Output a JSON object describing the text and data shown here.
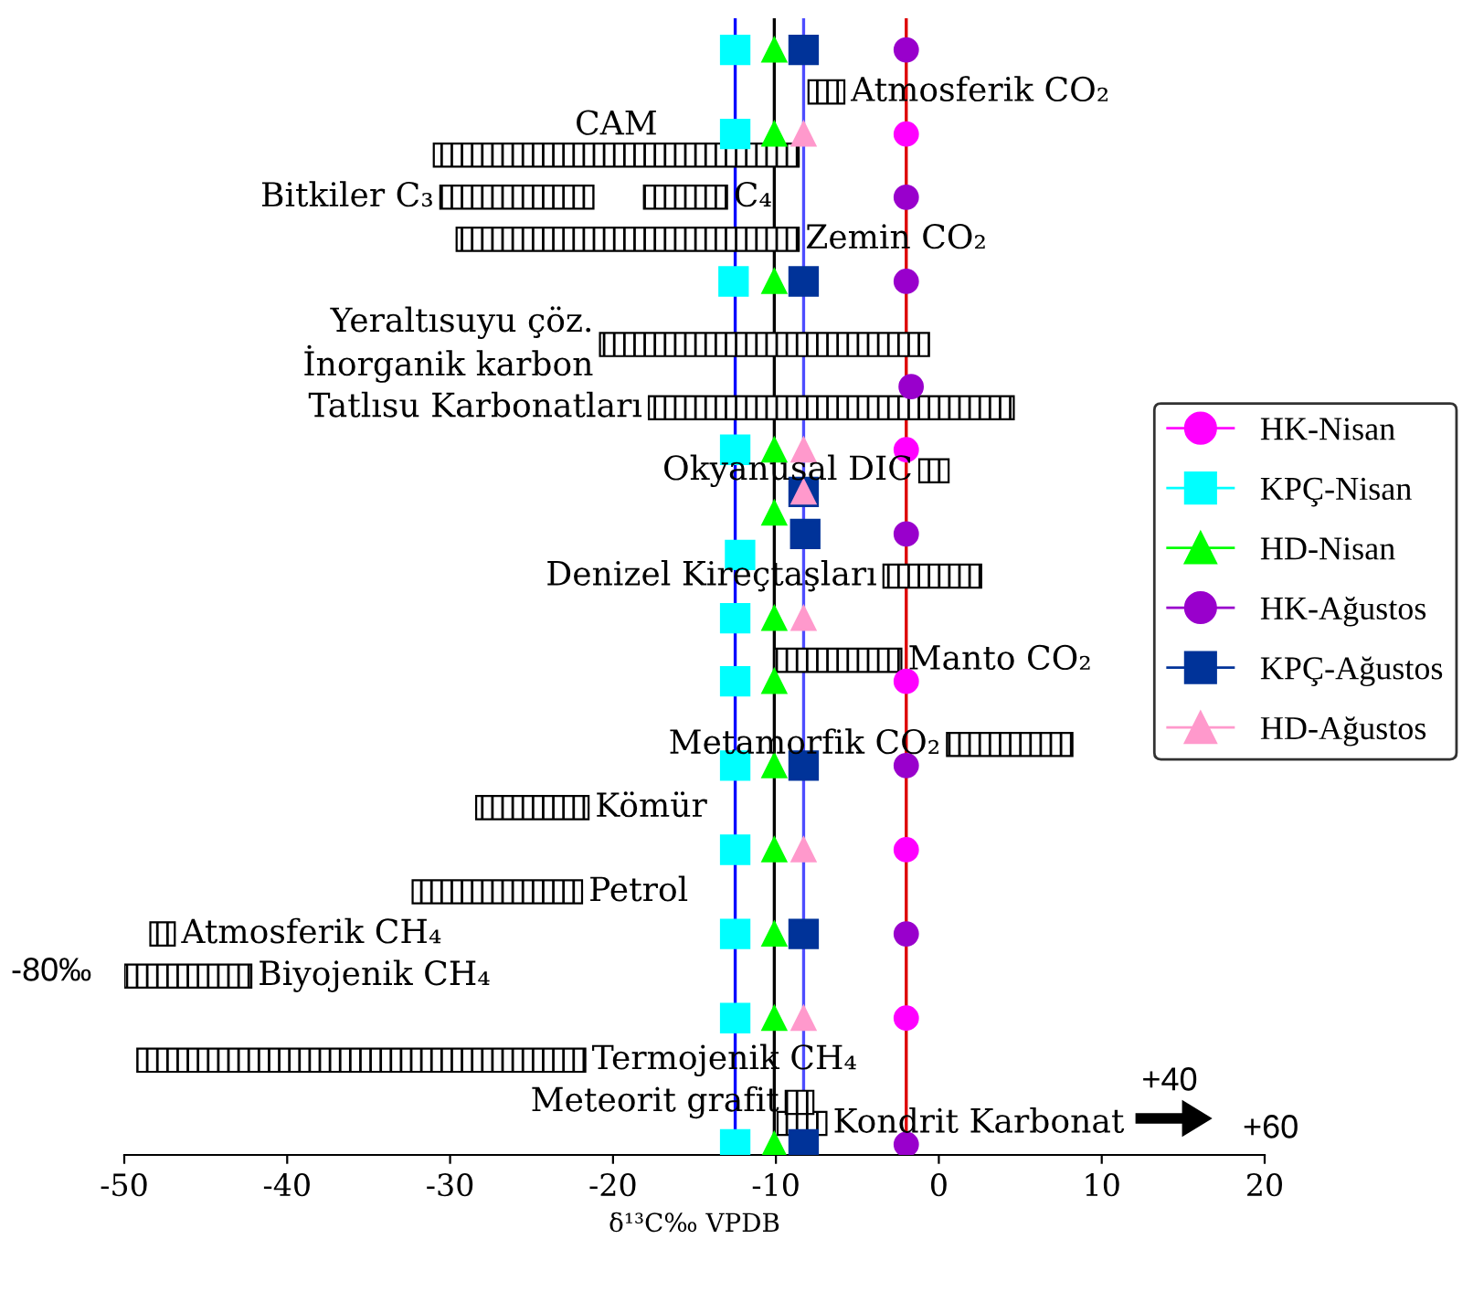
{
  "chart_data": {
    "type": "scatter",
    "orientation": "horizontal",
    "xlabel": "δ¹³C‰ VPDB",
    "categories": [
      null,
      null,
      null,
      null,
      null,
      null,
      null,
      null,
      null,
      null,
      null,
      null,
      null,
      null,
      null,
      null,
      null,
      null,
      null,
      null,
      null,
      null,
      null,
      null,
      null,
      null,
      null,
      null,
      null,
      null,
      null,
      null,
      null,
      null,
      null,
      null,
      null,
      null,
      null,
      null,
      null,
      null,
      null,
      null,
      null,
      null,
      null,
      null,
      null,
      null,
      null,
      null,
      null,
      null
    ],
    "xlim": [
      -50,
      20
    ],
    "xticks": [
      -50,
      -40,
      -30,
      -20,
      -10,
      0,
      10,
      20
    ],
    "tick_labels": "x",
    "legend": "right",
    "series": [
      {
        "name": "HK-Nisan",
        "marker": "circle",
        "color": "#ff00ff",
        "values": [
          null,
          null,
          null,
          null,
          null,
          -2.0,
          null,
          null,
          null,
          null,
          null,
          null,
          null,
          null,
          null,
          null,
          null,
          null,
          null,
          null,
          -2.0,
          null,
          null,
          null,
          null,
          null,
          null,
          null,
          null,
          null,
          null,
          -2.0,
          null,
          null,
          null,
          null,
          null,
          null,
          null,
          -2.0,
          null,
          null,
          null,
          null,
          null,
          null,
          null,
          -2.0,
          null,
          null,
          null,
          null,
          null,
          null
        ]
      },
      {
        "name": "KPÇ-Nisan",
        "marker": "square",
        "color": "#00ffff",
        "values": [
          null,
          -12.5,
          null,
          null,
          null,
          -12.5,
          null,
          null,
          null,
          null,
          null,
          null,
          -12.6,
          null,
          null,
          null,
          null,
          null,
          null,
          null,
          -12.5,
          null,
          null,
          null,
          null,
          -12.2,
          null,
          null,
          -12.5,
          null,
          null,
          -12.5,
          null,
          null,
          null,
          -12.5,
          null,
          null,
          null,
          -12.5,
          null,
          null,
          null,
          -12.5,
          null,
          null,
          null,
          -12.5,
          null,
          null,
          null,
          null,
          null,
          -12.5
        ]
      },
      {
        "name": "HD-Nisan",
        "marker": "triangle",
        "color": "#00ff00",
        "values": [
          null,
          -10.1,
          null,
          null,
          null,
          -10.1,
          null,
          null,
          null,
          null,
          null,
          null,
          -10.1,
          null,
          null,
          null,
          null,
          null,
          null,
          null,
          -10.1,
          null,
          null,
          -10.1,
          null,
          null,
          null,
          null,
          -10.1,
          null,
          null,
          -10.1,
          null,
          null,
          null,
          -10.1,
          null,
          null,
          null,
          -10.1,
          null,
          null,
          null,
          -10.1,
          null,
          null,
          null,
          -10.1,
          null,
          null,
          null,
          null,
          null,
          -10.1
        ]
      },
      {
        "name": "HK-Ağustos",
        "marker": "circle",
        "color": "#9900cc",
        "values": [
          null,
          -2.0,
          null,
          null,
          null,
          null,
          null,
          null,
          -2.0,
          null,
          null,
          null,
          -2.0,
          null,
          null,
          null,
          null,
          -1.7,
          null,
          null,
          null,
          null,
          null,
          null,
          -2.0,
          null,
          null,
          null,
          null,
          null,
          null,
          null,
          null,
          null,
          null,
          -2.0,
          null,
          null,
          null,
          null,
          null,
          null,
          null,
          -2.0,
          null,
          null,
          null,
          null,
          null,
          null,
          null,
          null,
          null,
          -2.0
        ]
      },
      {
        "name": "KPÇ-Ağustos",
        "marker": "square",
        "color": "#003399",
        "values": [
          null,
          -8.3,
          null,
          null,
          null,
          null,
          null,
          null,
          null,
          null,
          null,
          null,
          -8.3,
          null,
          null,
          null,
          null,
          null,
          null,
          null,
          null,
          null,
          -8.3,
          null,
          -8.2,
          null,
          null,
          null,
          null,
          null,
          null,
          null,
          null,
          null,
          null,
          -8.3,
          null,
          null,
          null,
          null,
          null,
          null,
          null,
          -8.3,
          null,
          null,
          null,
          null,
          null,
          null,
          null,
          null,
          null,
          -8.3
        ]
      },
      {
        "name": "HD-Ağustos",
        "marker": "triangle",
        "color": "#ff99cc",
        "values": [
          null,
          null,
          null,
          null,
          null,
          -8.3,
          null,
          null,
          null,
          null,
          null,
          null,
          null,
          null,
          null,
          null,
          null,
          null,
          null,
          null,
          -8.3,
          null,
          -8.3,
          null,
          null,
          null,
          null,
          null,
          -8.3,
          null,
          null,
          null,
          null,
          null,
          null,
          null,
          null,
          null,
          null,
          -8.3,
          null,
          null,
          null,
          null,
          null,
          null,
          null,
          -8.3,
          null,
          null,
          null,
          null,
          null,
          null
        ]
      },
      {
        "type": "bar",
        "color": "#000000",
        "base": [
          null,
          null,
          null,
          null,
          null,
          null,
          -31.0,
          null,
          null,
          null,
          null,
          null,
          null,
          null,
          null,
          null,
          null,
          null,
          null,
          null,
          null,
          null,
          null,
          null,
          null,
          null,
          null,
          null,
          null,
          null,
          null,
          null,
          null,
          null,
          null,
          null,
          null,
          null,
          null,
          null,
          null,
          null,
          null,
          null,
          null,
          null,
          null,
          null,
          null,
          null,
          null,
          null,
          null,
          null
        ],
        "values": [
          null,
          null,
          null,
          null,
          null,
          null,
          22.4,
          null,
          null,
          null,
          null,
          null,
          null,
          null,
          null,
          null,
          null,
          null,
          null,
          null,
          null,
          null,
          null,
          null,
          null,
          null,
          null,
          null,
          null,
          null,
          null,
          null,
          null,
          null,
          null,
          null,
          null,
          null,
          null,
          null,
          null,
          null,
          null,
          null,
          null,
          null,
          null,
          null,
          null,
          null,
          null,
          null,
          null,
          null
        ],
        "value_labels": [
          null,
          null,
          null,
          null,
          null,
          null,
          "CAM",
          null,
          null,
          null,
          null,
          null,
          null,
          null,
          null,
          null,
          null,
          null,
          null,
          null,
          null,
          null,
          null,
          null,
          null,
          null,
          null,
          null,
          null,
          null,
          null,
          null,
          null,
          null,
          null,
          null,
          null,
          null,
          null,
          null,
          null,
          null,
          null,
          null,
          null,
          null,
          null,
          null,
          null,
          null,
          null,
          null,
          null,
          null
        ]
      },
      {
        "type": "bar",
        "color": "#000000",
        "base": [
          null,
          null,
          null,
          -8.0,
          null,
          null,
          null,
          null,
          -18.1,
          null,
          -29.6,
          null,
          null,
          null,
          null,
          null,
          null,
          null,
          null,
          null,
          null,
          null,
          null,
          null,
          null,
          null,
          null,
          null,
          null,
          null,
          -10.1,
          null,
          null,
          null,
          null,
          null,
          null,
          -28.4,
          null,
          null,
          null,
          -32.3,
          null,
          -48.4,
          null,
          -50.0,
          null,
          null,
          null,
          -49.2,
          null,
          null,
          -9.9,
          null
        ],
        "values": [
          null,
          null,
          null,
          2.2,
          null,
          null,
          null,
          null,
          5.1,
          null,
          21.0,
          null,
          null,
          null,
          null,
          null,
          null,
          null,
          null,
          null,
          null,
          null,
          null,
          null,
          null,
          null,
          null,
          null,
          null,
          null,
          7.8,
          null,
          null,
          null,
          null,
          null,
          null,
          6.9,
          null,
          null,
          null,
          10.4,
          null,
          1.5,
          null,
          7.8,
          null,
          null,
          null,
          27.5,
          null,
          null,
          3.0,
          null
        ],
        "value_labels": [
          null,
          null,
          null,
          "Atmosferik CO₂",
          null,
          null,
          null,
          null,
          "C₄",
          null,
          "Zemin CO₂",
          null,
          null,
          null,
          null,
          null,
          null,
          null,
          null,
          null,
          null,
          null,
          null,
          null,
          null,
          null,
          null,
          null,
          null,
          null,
          "Manto CO₂",
          null,
          null,
          null,
          null,
          null,
          null,
          "Kömür",
          null,
          null,
          null,
          "Petrol",
          null,
          "Atmosferik CH₄",
          null,
          "Biyojenik CH₄",
          null,
          null,
          null,
          "Termojenik CH₄",
          null,
          null,
          "Kondrit Karbonat",
          null
        ]
      },
      {
        "type": "bar",
        "color": "#000000",
        "base": [
          null,
          null,
          null,
          null,
          null,
          null,
          null,
          null,
          -30.6,
          null,
          null,
          null,
          null,
          null,
          null,
          -20.8,
          null,
          null,
          -17.8,
          null,
          null,
          -1.2,
          null,
          null,
          null,
          null,
          -3.4,
          null,
          null,
          null,
          null,
          null,
          null,
          null,
          0.5,
          null,
          null,
          null,
          null,
          null,
          null,
          null,
          null,
          null,
          null,
          null,
          null,
          null,
          null,
          null,
          null,
          -9.4,
          null,
          null
        ],
        "values": [
          null,
          null,
          null,
          null,
          null,
          null,
          null,
          null,
          9.4,
          null,
          null,
          null,
          null,
          null,
          null,
          20.2,
          null,
          null,
          22.4,
          null,
          null,
          1.8,
          null,
          null,
          null,
          null,
          6.0,
          null,
          null,
          null,
          null,
          null,
          null,
          null,
          7.7,
          null,
          null,
          null,
          null,
          null,
          null,
          null,
          null,
          null,
          null,
          null,
          null,
          null,
          null,
          null,
          null,
          1.7,
          null,
          null
        ],
        "value_labels": [
          null,
          null,
          null,
          null,
          null,
          null,
          null,
          null,
          "Bitkiler C₃",
          null,
          null,
          null,
          null,
          null,
          null,
          "Yeraltısuyu çöz.\nİnorganik karbon",
          null,
          null,
          "Tatlısu Karbonatları",
          null,
          null,
          "Okyanusal DIC",
          null,
          null,
          null,
          null,
          "Denizel Kireçtaşları",
          null,
          null,
          null,
          null,
          null,
          null,
          null,
          "Metamorfik CO₂",
          null,
          null,
          null,
          null,
          null,
          null,
          null,
          null,
          null,
          null,
          null,
          null,
          null,
          null,
          null,
          null,
          "Meteorit grafit",
          null,
          null
        ]
      }
    ],
    "ref_lines": [
      {
        "axis": "x",
        "value": -12.5,
        "color": "#0000ff"
      },
      {
        "axis": "x",
        "value": -10.1,
        "color": "#000000"
      },
      {
        "axis": "x",
        "value": -8.3,
        "color": "#4d4dff"
      },
      {
        "axis": "x",
        "value": -2.0,
        "color": "#dd0000"
      }
    ],
    "annotations": [
      "-80‰",
      "+40",
      "+60"
    ]
  }
}
